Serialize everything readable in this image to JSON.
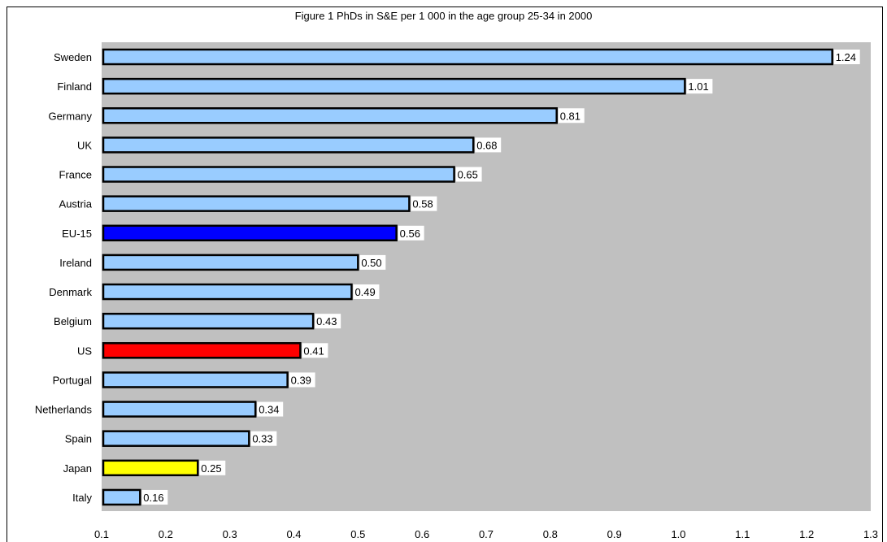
{
  "chart_data": {
    "type": "bar",
    "orientation": "horizontal",
    "title": "Figure 1   PhDs in S&E per 1 000 in the age group 25-34 in 2000",
    "categories": [
      "Sweden",
      "Finland",
      "Germany",
      "UK",
      "France",
      "Austria",
      "EU-15",
      "Ireland",
      "Denmark",
      "Belgium",
      "US",
      "Portugal",
      "Netherlands",
      "Spain",
      "Japan",
      "Italy"
    ],
    "values": [
      1.24,
      1.01,
      0.81,
      0.68,
      0.65,
      0.58,
      0.56,
      0.5,
      0.49,
      0.43,
      0.41,
      0.39,
      0.34,
      0.33,
      0.25,
      0.16
    ],
    "value_labels": [
      "1.24",
      "1.01",
      "0.81",
      "0.68",
      "0.65",
      "0.58",
      "0.56",
      "0.50",
      "0.49",
      "0.43",
      "0.41",
      "0.39",
      "0.34",
      "0.33",
      "0.25",
      "0.16"
    ],
    "bar_colors": [
      "#99ccff",
      "#99ccff",
      "#99ccff",
      "#99ccff",
      "#99ccff",
      "#99ccff",
      "#0000ff",
      "#99ccff",
      "#99ccff",
      "#99ccff",
      "#ff0000",
      "#99ccff",
      "#99ccff",
      "#99ccff",
      "#ffff00",
      "#99ccff"
    ],
    "x_ticks": [
      "0.1",
      "0.2",
      "0.3",
      "0.4",
      "0.5",
      "0.6",
      "0.7",
      "0.8",
      "0.9",
      "1.0",
      "1.1",
      "1.2",
      "1.3"
    ],
    "xlim": [
      0.1,
      1.3
    ],
    "plot_background": "#c0c0c0",
    "grid": false,
    "legend": "none"
  }
}
